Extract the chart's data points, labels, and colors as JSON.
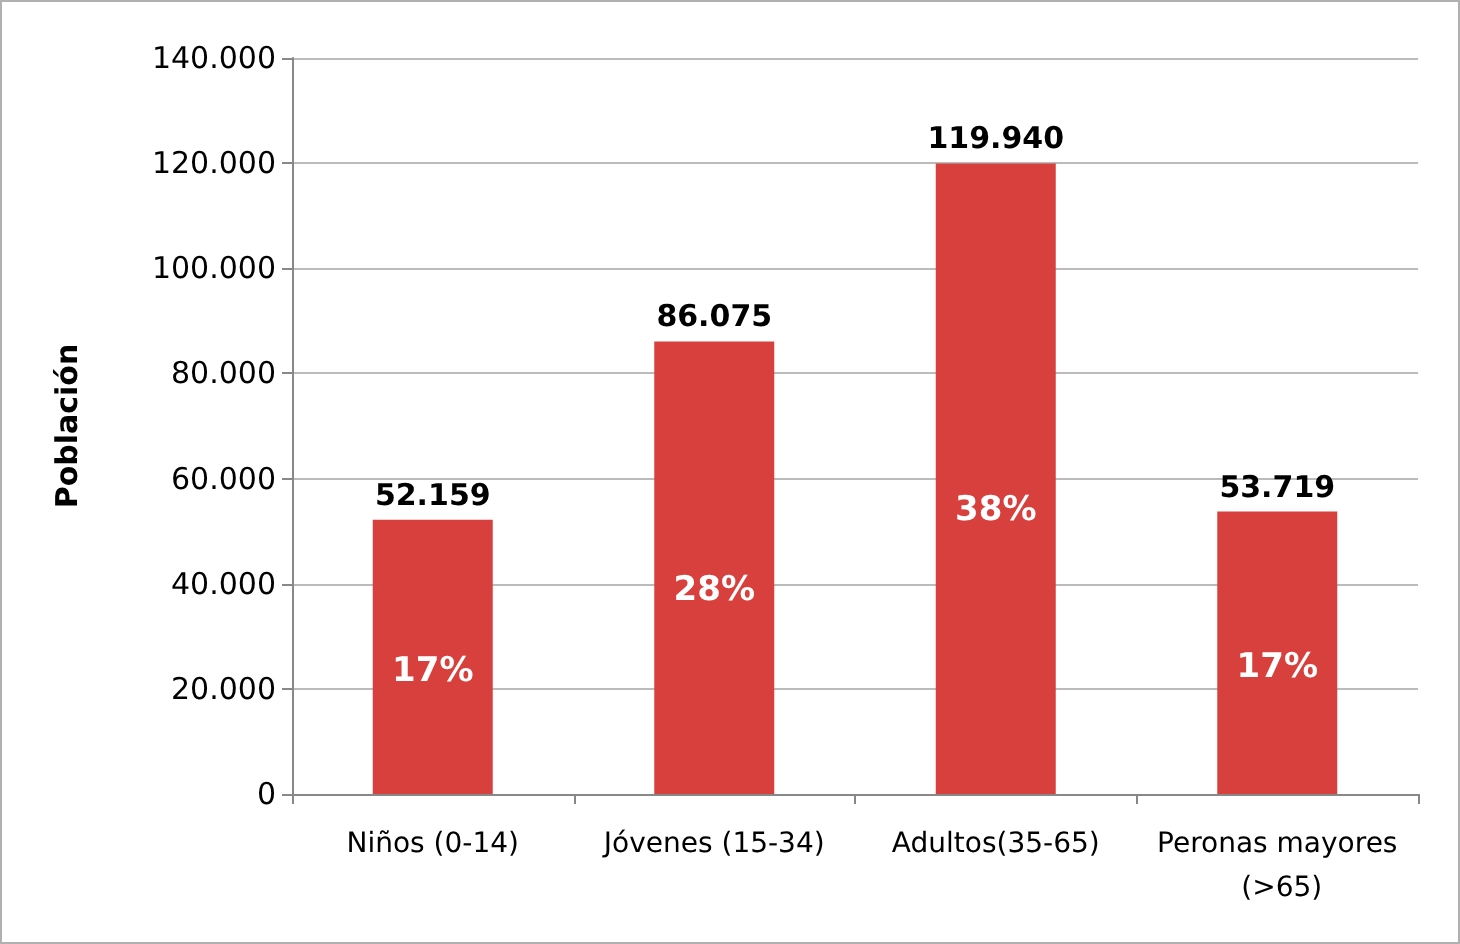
{
  "chart_data": {
    "type": "bar",
    "ylabel": "Población",
    "categories": [
      "Niños (0-14)",
      "Jóvenes (15-34)",
      "Adultos(35-65)",
      "Peronas mayores (>65)"
    ],
    "values": [
      52159,
      86075,
      119940,
      53719
    ],
    "value_labels": [
      "52.159",
      "86.075",
      "119.940",
      "53.719"
    ],
    "color": "#d8403d",
    "ylim": [
      0,
      140000
    ],
    "yticks": [
      {
        "value": 0,
        "label": "0"
      },
      {
        "value": 20000,
        "label": "20.000"
      },
      {
        "value": 40000,
        "label": "40.000"
      },
      {
        "value": 60000,
        "label": "60.000"
      },
      {
        "value": 80000,
        "label": "80.000"
      },
      {
        "value": 100000,
        "label": "100.000"
      },
      {
        "value": 120000,
        "label": "120.000"
      },
      {
        "value": 140000,
        "label": "140.000"
      }
    ],
    "grid": "y",
    "annotations": [
      "17%",
      "28%",
      "38%",
      "17%"
    ]
  }
}
